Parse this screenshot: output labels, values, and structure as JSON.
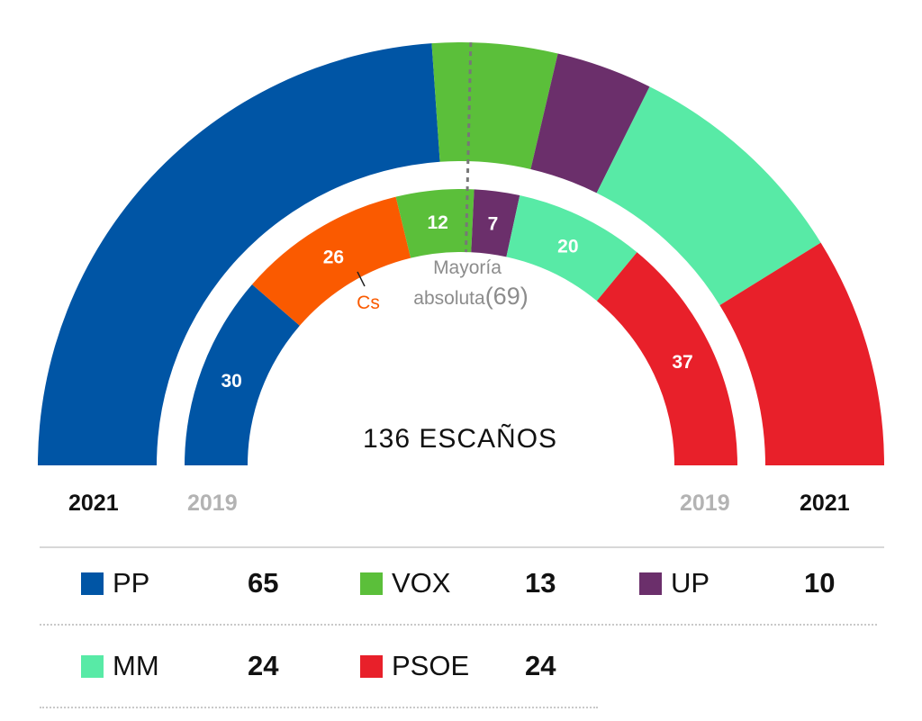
{
  "chart_data": {
    "type": "parliament-hemicycle",
    "center_label": "136 ESCAÑOS",
    "majority_label_line1": "Mayoría",
    "majority_label_line2": "absoluta",
    "majority_value": "(69)",
    "total_seats": 136,
    "majority_seats": 69,
    "rings": [
      {
        "year": "2021",
        "series": [
          {
            "name": "PP",
            "seats": 65,
            "color": "#0055a5"
          },
          {
            "name": "VOX",
            "seats": 13,
            "color": "#5bbf3a"
          },
          {
            "name": "UP",
            "seats": 10,
            "color": "#6b2f6b"
          },
          {
            "name": "MM",
            "seats": 24,
            "color": "#58eaa6"
          },
          {
            "name": "PSOE",
            "seats": 24,
            "color": "#e8202a"
          }
        ]
      },
      {
        "year": "2019",
        "series": [
          {
            "name": "PP",
            "seats": 30,
            "color": "#0055a5",
            "label": "30"
          },
          {
            "name": "Cs",
            "seats": 26,
            "color": "#fa5a00",
            "label": "26"
          },
          {
            "name": "VOX",
            "seats": 12,
            "color": "#5bbf3a",
            "label": "12"
          },
          {
            "name": "UP",
            "seats": 7,
            "color": "#6b2f6b",
            "label": "7"
          },
          {
            "name": "MM",
            "seats": 20,
            "color": "#58eaa6",
            "label": "20"
          },
          {
            "name": "PSOE",
            "seats": 37,
            "color": "#e8202a",
            "label": "37"
          }
        ],
        "annotation": {
          "text": "Cs",
          "color": "#fa5a00"
        }
      }
    ]
  },
  "year_labels": {
    "left_outer": "2021",
    "left_inner": "2019",
    "right_inner": "2019",
    "right_outer": "2021"
  },
  "legend": [
    {
      "name": "PP",
      "value": "65",
      "color": "#0055a5"
    },
    {
      "name": "VOX",
      "value": "13",
      "color": "#5bbf3a"
    },
    {
      "name": "UP",
      "value": "10",
      "color": "#6b2f6b"
    },
    {
      "name": "MM",
      "value": "24",
      "color": "#58eaa6"
    },
    {
      "name": "PSOE",
      "value": "24",
      "color": "#e8202a"
    }
  ]
}
